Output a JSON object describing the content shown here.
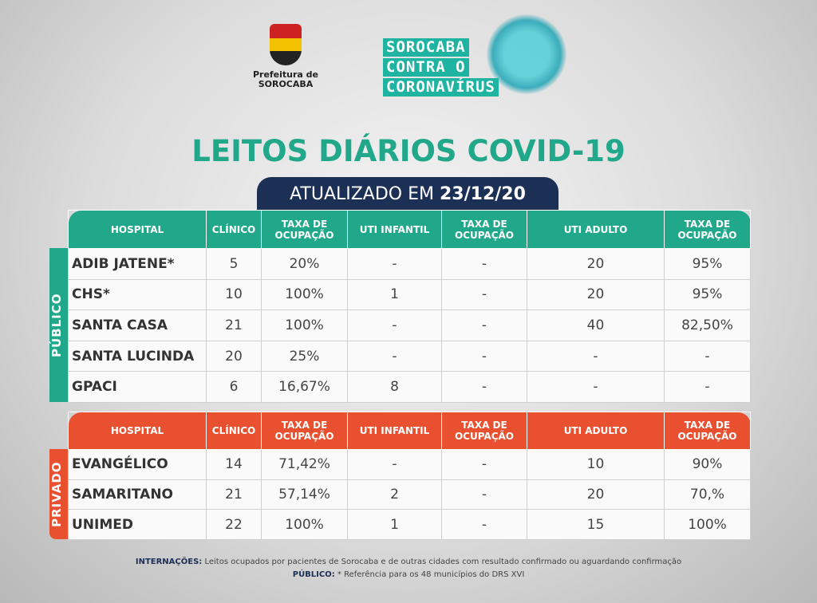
{
  "logo": {
    "line1": "Prefeitura de",
    "line2": "SOROCABA"
  },
  "campaign": [
    "SOROCABA",
    "CONTRA O",
    "CORONAVÍRUS"
  ],
  "title": "LEITOS DIÁRIOS COVID-19",
  "updated": {
    "label": "ATUALIZADO EM",
    "date": "23/12/20"
  },
  "headers": [
    "HOSPITAL",
    "CLÍNICO",
    "TAXA DE OCUPAÇÃO",
    "UTI INFANTIL",
    "TAXA DE OCUPAÇÃO",
    "UTI ADULTO",
    "TAXA DE OCUPAÇÃO"
  ],
  "colors": {
    "publico": "#21a88a",
    "privado": "#e8502f",
    "banner": "#1c2f55"
  },
  "publico": {
    "label": "PÚBLICO",
    "rows": [
      [
        "ADIB JATENE*",
        "5",
        "20%",
        "-",
        "-",
        "20",
        "95%"
      ],
      [
        "CHS*",
        "10",
        "100%",
        "1",
        "-",
        "20",
        "95%"
      ],
      [
        "SANTA CASA",
        "21",
        "100%",
        "-",
        "-",
        "40",
        "82,50%"
      ],
      [
        "SANTA LUCINDA",
        "20",
        "25%",
        "-",
        "-",
        "-",
        "-"
      ],
      [
        "GPACI",
        "6",
        "16,67%",
        "8",
        "-",
        "-",
        "-"
      ]
    ]
  },
  "privado": {
    "label": "PRIVADO",
    "rows": [
      [
        "EVANGÉLICO",
        "14",
        "71,42%",
        "-",
        "-",
        "10",
        "90%"
      ],
      [
        "SAMARITANO",
        "21",
        "57,14%",
        "2",
        "-",
        "20",
        "70,%"
      ],
      [
        "UNIMED",
        "22",
        "100%",
        "1",
        "-",
        "15",
        "100%"
      ]
    ]
  },
  "footer": {
    "line1_label": "INTERNAÇÕES:",
    "line1_text": " Leitos ocupados por pacientes de Sorocaba e de outras cidades com resultado confirmado ou aguardando confirmação",
    "line2_label": "PÚBLICO:",
    "line2_text": " * Referência para os 48 municípios do DRS XVI"
  }
}
